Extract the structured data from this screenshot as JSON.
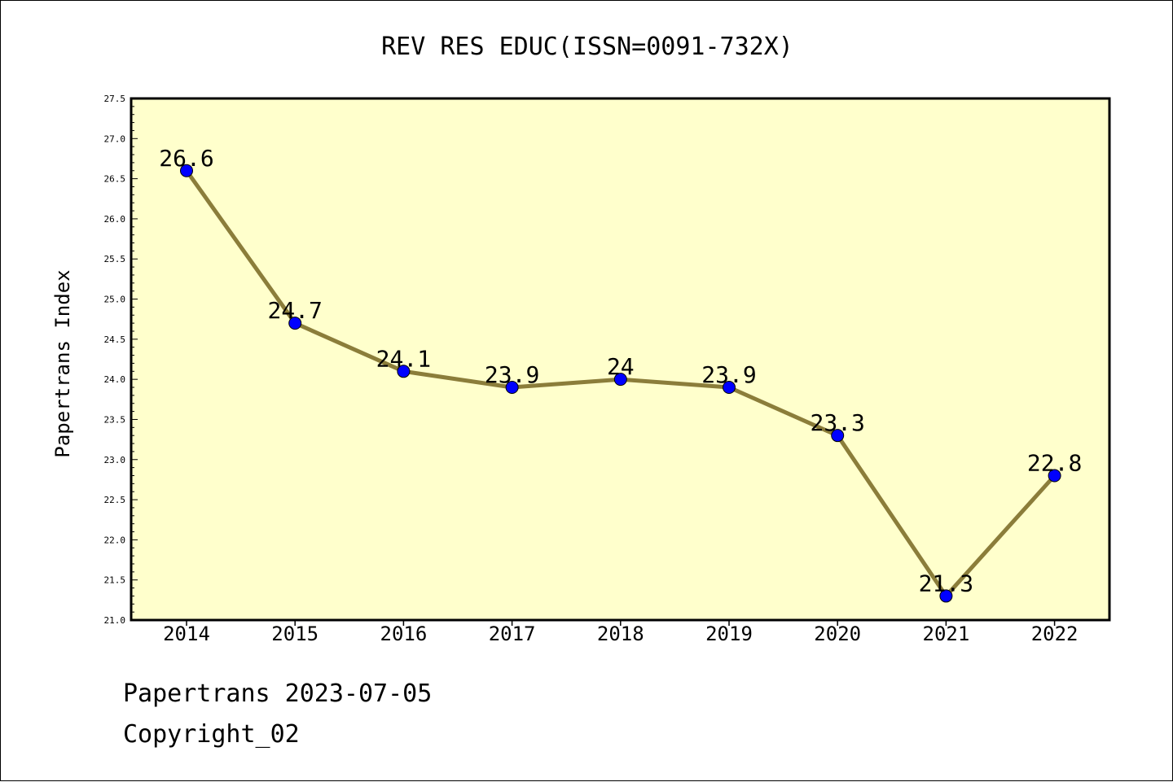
{
  "chart_data": {
    "type": "line",
    "title": "REV RES EDUC(ISSN=0091-732X)",
    "xlabel": "",
    "ylabel": "Papertrans Index",
    "categories": [
      "2014",
      "2015",
      "2016",
      "2017",
      "2018",
      "2019",
      "2020",
      "2021",
      "2022"
    ],
    "values": [
      26.6,
      24.7,
      24.1,
      23.9,
      24.0,
      23.9,
      23.3,
      21.3,
      22.8
    ],
    "data_labels": [
      "26.6",
      "24.7",
      "24.1",
      "23.9",
      "24",
      "23.9",
      "23.3",
      "21.3",
      "22.8"
    ],
    "ylim": [
      21.0,
      27.5
    ],
    "yticks": [
      "21.0",
      "21.5",
      "22.0",
      "22.5",
      "23.0",
      "23.5",
      "24.0",
      "24.5",
      "25.0",
      "25.5",
      "26.0",
      "26.5",
      "27.0",
      "27.5"
    ],
    "grid": false,
    "legend": "none",
    "colors": {
      "plot_background": "#ffffcc",
      "line": "#8b7d3a",
      "marker": "#0000ff",
      "axes": "#000000"
    }
  },
  "footer": {
    "source_line": "Papertrans 2023-07-05",
    "copyright_line": "Copyright_02"
  }
}
